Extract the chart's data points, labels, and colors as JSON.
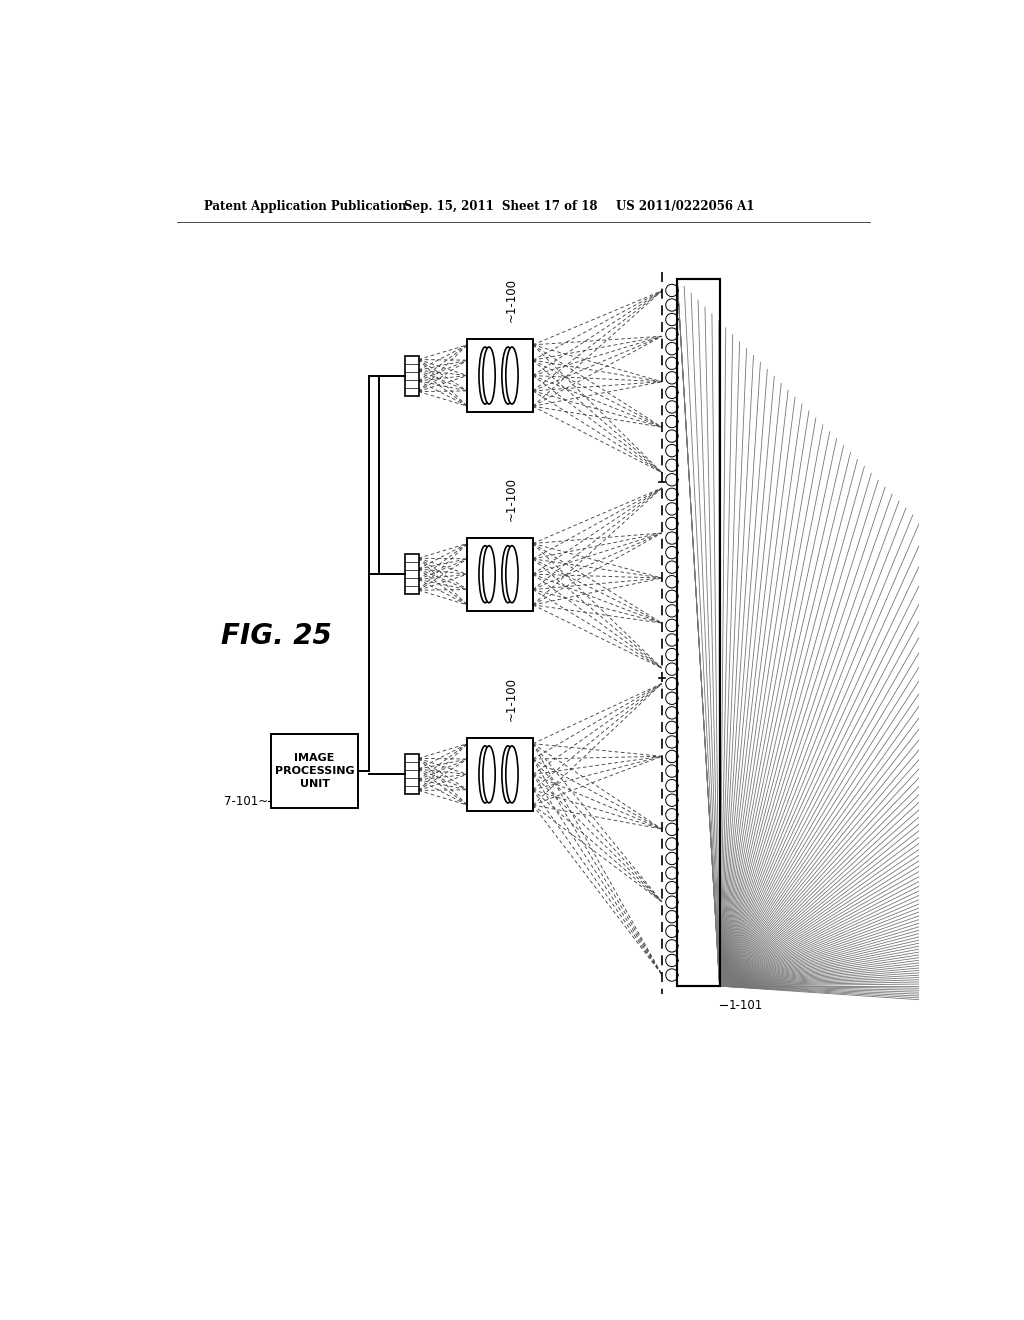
{
  "title_left": "Patent Application Publication",
  "title_mid": "Sep. 15, 2011  Sheet 17 of 18",
  "title_right": "US 2011/0222056 A1",
  "fig_label": "FIG. 25",
  "label_1100": "~1-100",
  "label_1101": "1-101",
  "label_7101": "7-101~",
  "image_processing_unit": "IMAGE\nPROCESSING\nUNIT",
  "bg_color": "#ffffff",
  "line_color": "#000000"
}
